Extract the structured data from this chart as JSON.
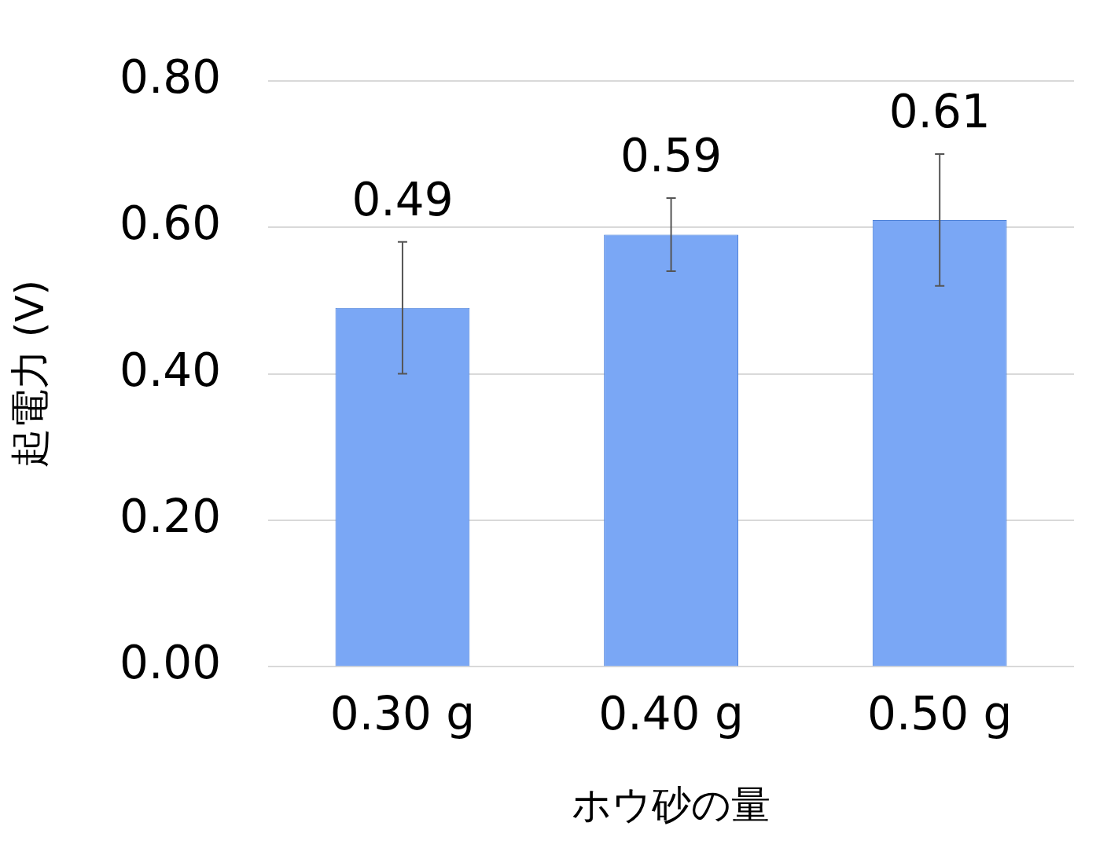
{
  "chart_data": {
    "type": "bar",
    "xlabel": "ホウ砂の量",
    "ylabel": "起電力 (V)",
    "categories": [
      "0.30 g",
      "0.40 g",
      "0.50 g"
    ],
    "values": [
      0.49,
      0.59,
      0.61
    ],
    "errors": [
      0.09,
      0.05,
      0.09
    ],
    "color": "#7aa7f5",
    "ylim": [
      0,
      0.8
    ],
    "yticks": [
      {
        "value": 0,
        "label": "0.00"
      },
      {
        "value": 0.2,
        "label": "0.20"
      },
      {
        "value": 0.4,
        "label": "0.40"
      },
      {
        "value": 0.6,
        "label": "0.60"
      },
      {
        "value": 0.8,
        "label": "0.80"
      }
    ],
    "grid": "y",
    "data_labels": true,
    "legend": false
  }
}
